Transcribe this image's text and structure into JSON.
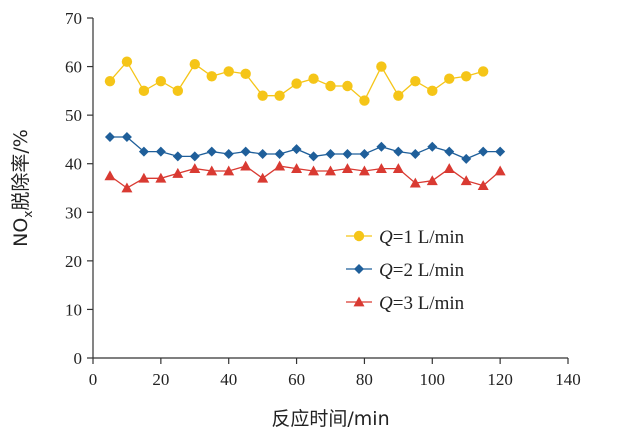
{
  "chart_data": {
    "type": "line",
    "xlabel": "反应时间/min",
    "ylabel_main": "NO",
    "ylabel_sub": "x",
    "ylabel_rest": "脱除率/%",
    "xlim": [
      0,
      140
    ],
    "ylim": [
      0,
      70
    ],
    "xticks": [
      0,
      20,
      40,
      60,
      80,
      100,
      120,
      140
    ],
    "yticks": [
      0,
      10,
      20,
      30,
      40,
      50,
      60,
      70
    ],
    "grid": false,
    "legend_position": "lower-right",
    "x": [
      5,
      10,
      15,
      20,
      25,
      30,
      35,
      40,
      45,
      50,
      55,
      60,
      65,
      70,
      75,
      80,
      85,
      90,
      95,
      100,
      105,
      110,
      115,
      120
    ],
    "series": [
      {
        "label_var": "Q",
        "label_value": "=1 L/min",
        "color": "#F5C518",
        "marker": "circle",
        "values": [
          57,
          61,
          55,
          57,
          55,
          60.5,
          58,
          59,
          58.5,
          54,
          54,
          56.5,
          57.5,
          56,
          56,
          53,
          60,
          54,
          57,
          55,
          57.5,
          58,
          59,
          null
        ]
      },
      {
        "label_var": "Q",
        "label_value": "=2 L/min",
        "color": "#1F5F9A",
        "marker": "diamond",
        "values": [
          45.5,
          45.5,
          42.5,
          42.5,
          41.5,
          41.5,
          42.5,
          42,
          42.5,
          42,
          42,
          43,
          41.5,
          42,
          42,
          42,
          43.5,
          42.5,
          42,
          43.5,
          42.5,
          41,
          42.5,
          42.5
        ]
      },
      {
        "label_var": "Q",
        "label_value": "=3 L/min",
        "color": "#D93A32",
        "marker": "triangle",
        "values": [
          37.5,
          35,
          37,
          37,
          38,
          39,
          38.5,
          38.5,
          39.5,
          37,
          39.5,
          39,
          38.5,
          38.5,
          39,
          38.5,
          39,
          39,
          36,
          36.5,
          39,
          36.5,
          35.5,
          38.5
        ]
      }
    ]
  }
}
